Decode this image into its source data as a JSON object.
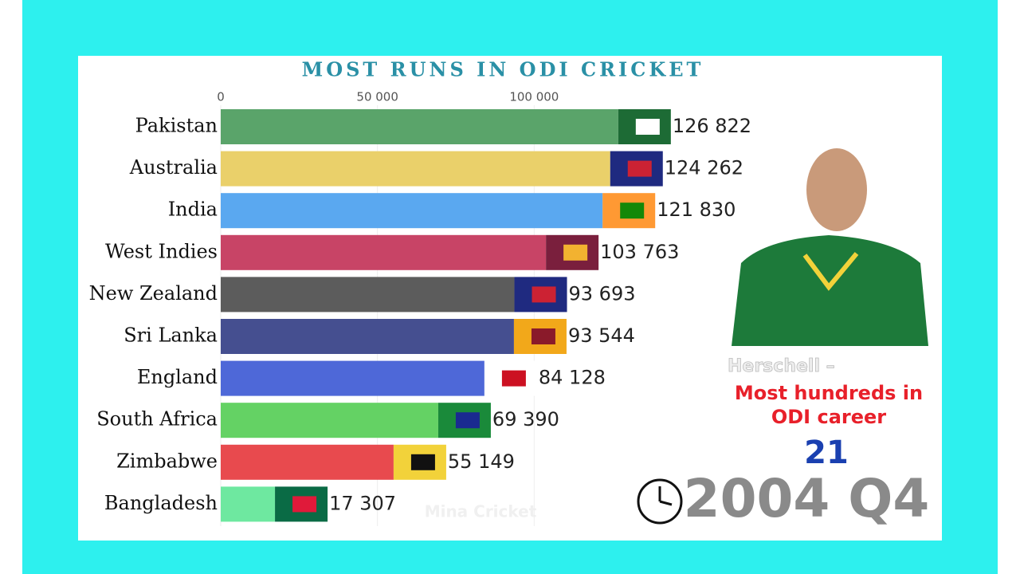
{
  "chart_data": {
    "type": "bar",
    "orientation": "horizontal",
    "title": "MOST RUNS IN ODI CRICKET",
    "categories": [
      "Pakistan",
      "Australia",
      "India",
      "West Indies",
      "New Zealand",
      "Sri Lanka",
      "England",
      "South Africa",
      "Zimbabwe",
      "Bangladesh"
    ],
    "values": [
      126822,
      124262,
      121830,
      103763,
      93693,
      93544,
      84128,
      69390,
      55149,
      17307
    ],
    "value_labels": [
      "126 822",
      "124 262",
      "121 830",
      "103 763",
      "93 693",
      "93 544",
      "84 128",
      "69 390",
      "55 149",
      "17 307"
    ],
    "colors": [
      "#5aa46a",
      "#ead06a",
      "#5aa8f0",
      "#c84466",
      "#5c5c5c",
      "#454f90",
      "#4e68d8",
      "#64d264",
      "#e84a4e",
      "#6ee8a0"
    ],
    "xlim": [
      0,
      150000
    ],
    "xticks": [
      0,
      {
        "value": 50000,
        "label": "50 000"
      },
      {
        "value": 100000,
        "label": "100 000"
      }
    ],
    "grid": true,
    "annotation": {
      "player": "Herschell –",
      "stat_lines": [
        "Most hundreds in",
        "ODI career"
      ],
      "stat_value": 21
    },
    "period": "2004 Q4",
    "watermark": "Mina Cricket"
  }
}
